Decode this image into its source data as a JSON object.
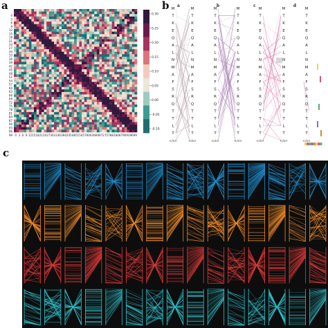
{
  "panels": {
    "a": {
      "letter": "a"
    },
    "b": {
      "letter": "b",
      "column_headers": [
        "a",
        "b",
        "c",
        "d"
      ]
    },
    "c": {
      "letter": "c"
    }
  },
  "heatmap": {
    "type": "heatmap",
    "grid_size": 49,
    "axis_tick_labels": [
      "0",
      "3",
      "6",
      "9",
      "12",
      "15",
      "18",
      "21",
      "24",
      "27",
      "30",
      "33",
      "36",
      "39",
      "42",
      "45",
      "48",
      "51",
      "54",
      "57",
      "60",
      "63",
      "66",
      "69",
      "72",
      "75",
      "78",
      "81",
      "84",
      "87",
      "90",
      "93",
      "96",
      "99"
    ],
    "colorbar": {
      "ticks": [
        "0.30",
        "0.25",
        "0.20",
        "0.15",
        "0.10",
        "0.05",
        "0.00",
        "-0.05",
        "-0.10"
      ],
      "min": -0.1,
      "max": 0.3,
      "colors": [
        "#2e1a3d",
        "#6b1a4d",
        "#a8325f",
        "#d9757a",
        "#f2cbbd",
        "#eae6d8",
        "#9fcabf",
        "#3c9c92",
        "#1f6d73"
      ]
    }
  },
  "alignment": {
    "sequence": [
      "M",
      "T",
      "K",
      "E",
      "Q",
      "A",
      "L",
      "N",
      "M",
      "A",
      "F",
      "S",
      "R",
      "Q",
      "T",
      "T",
      "L",
      "T"
    ],
    "end_label": "</s>",
    "column_colors": [
      "#b59fa8",
      "#a77fb2",
      "#d87aa8",
      "#c992b8"
    ],
    "highlight_colors": [
      "#f2d04b",
      "#d94f8a",
      "#5ab06a",
      "#7a6fd4",
      "#e08030"
    ]
  },
  "grid_c": {
    "rows": 4,
    "cols": 15,
    "row_colors": [
      "#1e8fd0",
      "#f08c2a",
      "#e43a3a",
      "#2ec4cf"
    ],
    "background": "#0d0d0d"
  }
}
